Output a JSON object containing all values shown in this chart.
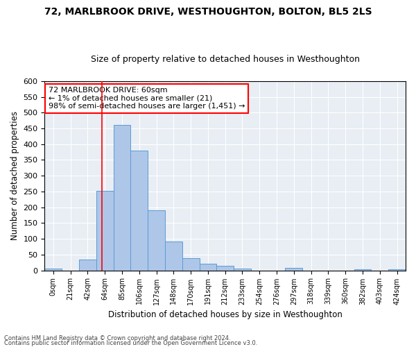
{
  "title": "72, MARLBROOK DRIVE, WESTHOUGHTON, BOLTON, BL5 2LS",
  "subtitle": "Size of property relative to detached houses in Westhoughton",
  "xlabel": "Distribution of detached houses by size in Westhoughton",
  "ylabel": "Number of detached properties",
  "categories": [
    "0sqm",
    "21sqm",
    "42sqm",
    "64sqm",
    "85sqm",
    "106sqm",
    "127sqm",
    "148sqm",
    "170sqm",
    "191sqm",
    "212sqm",
    "233sqm",
    "254sqm",
    "276sqm",
    "297sqm",
    "318sqm",
    "339sqm",
    "360sqm",
    "382sqm",
    "403sqm",
    "424sqm"
  ],
  "values": [
    5,
    0,
    35,
    253,
    460,
    380,
    190,
    92,
    38,
    22,
    14,
    5,
    0,
    0,
    8,
    0,
    0,
    0,
    3,
    0,
    3
  ],
  "bar_color": "#aec6e8",
  "bar_edge_color": "#5b9bd5",
  "property_line_color": "red",
  "annotation_text": "72 MARLBROOK DRIVE: 60sqm\n← 1% of detached houses are smaller (21)\n98% of semi-detached houses are larger (1,451) →",
  "annotation_box_color": "white",
  "annotation_box_edge_color": "red",
  "ylim": [
    0,
    600
  ],
  "yticks": [
    0,
    50,
    100,
    150,
    200,
    250,
    300,
    350,
    400,
    450,
    500,
    550,
    600
  ],
  "background_color": "#e8eef4",
  "footer_line1": "Contains HM Land Registry data © Crown copyright and database right 2024.",
  "footer_line2": "Contains public sector information licensed under the Open Government Licence v3.0.",
  "title_fontsize": 10,
  "subtitle_fontsize": 9,
  "bar_width": 1.0
}
